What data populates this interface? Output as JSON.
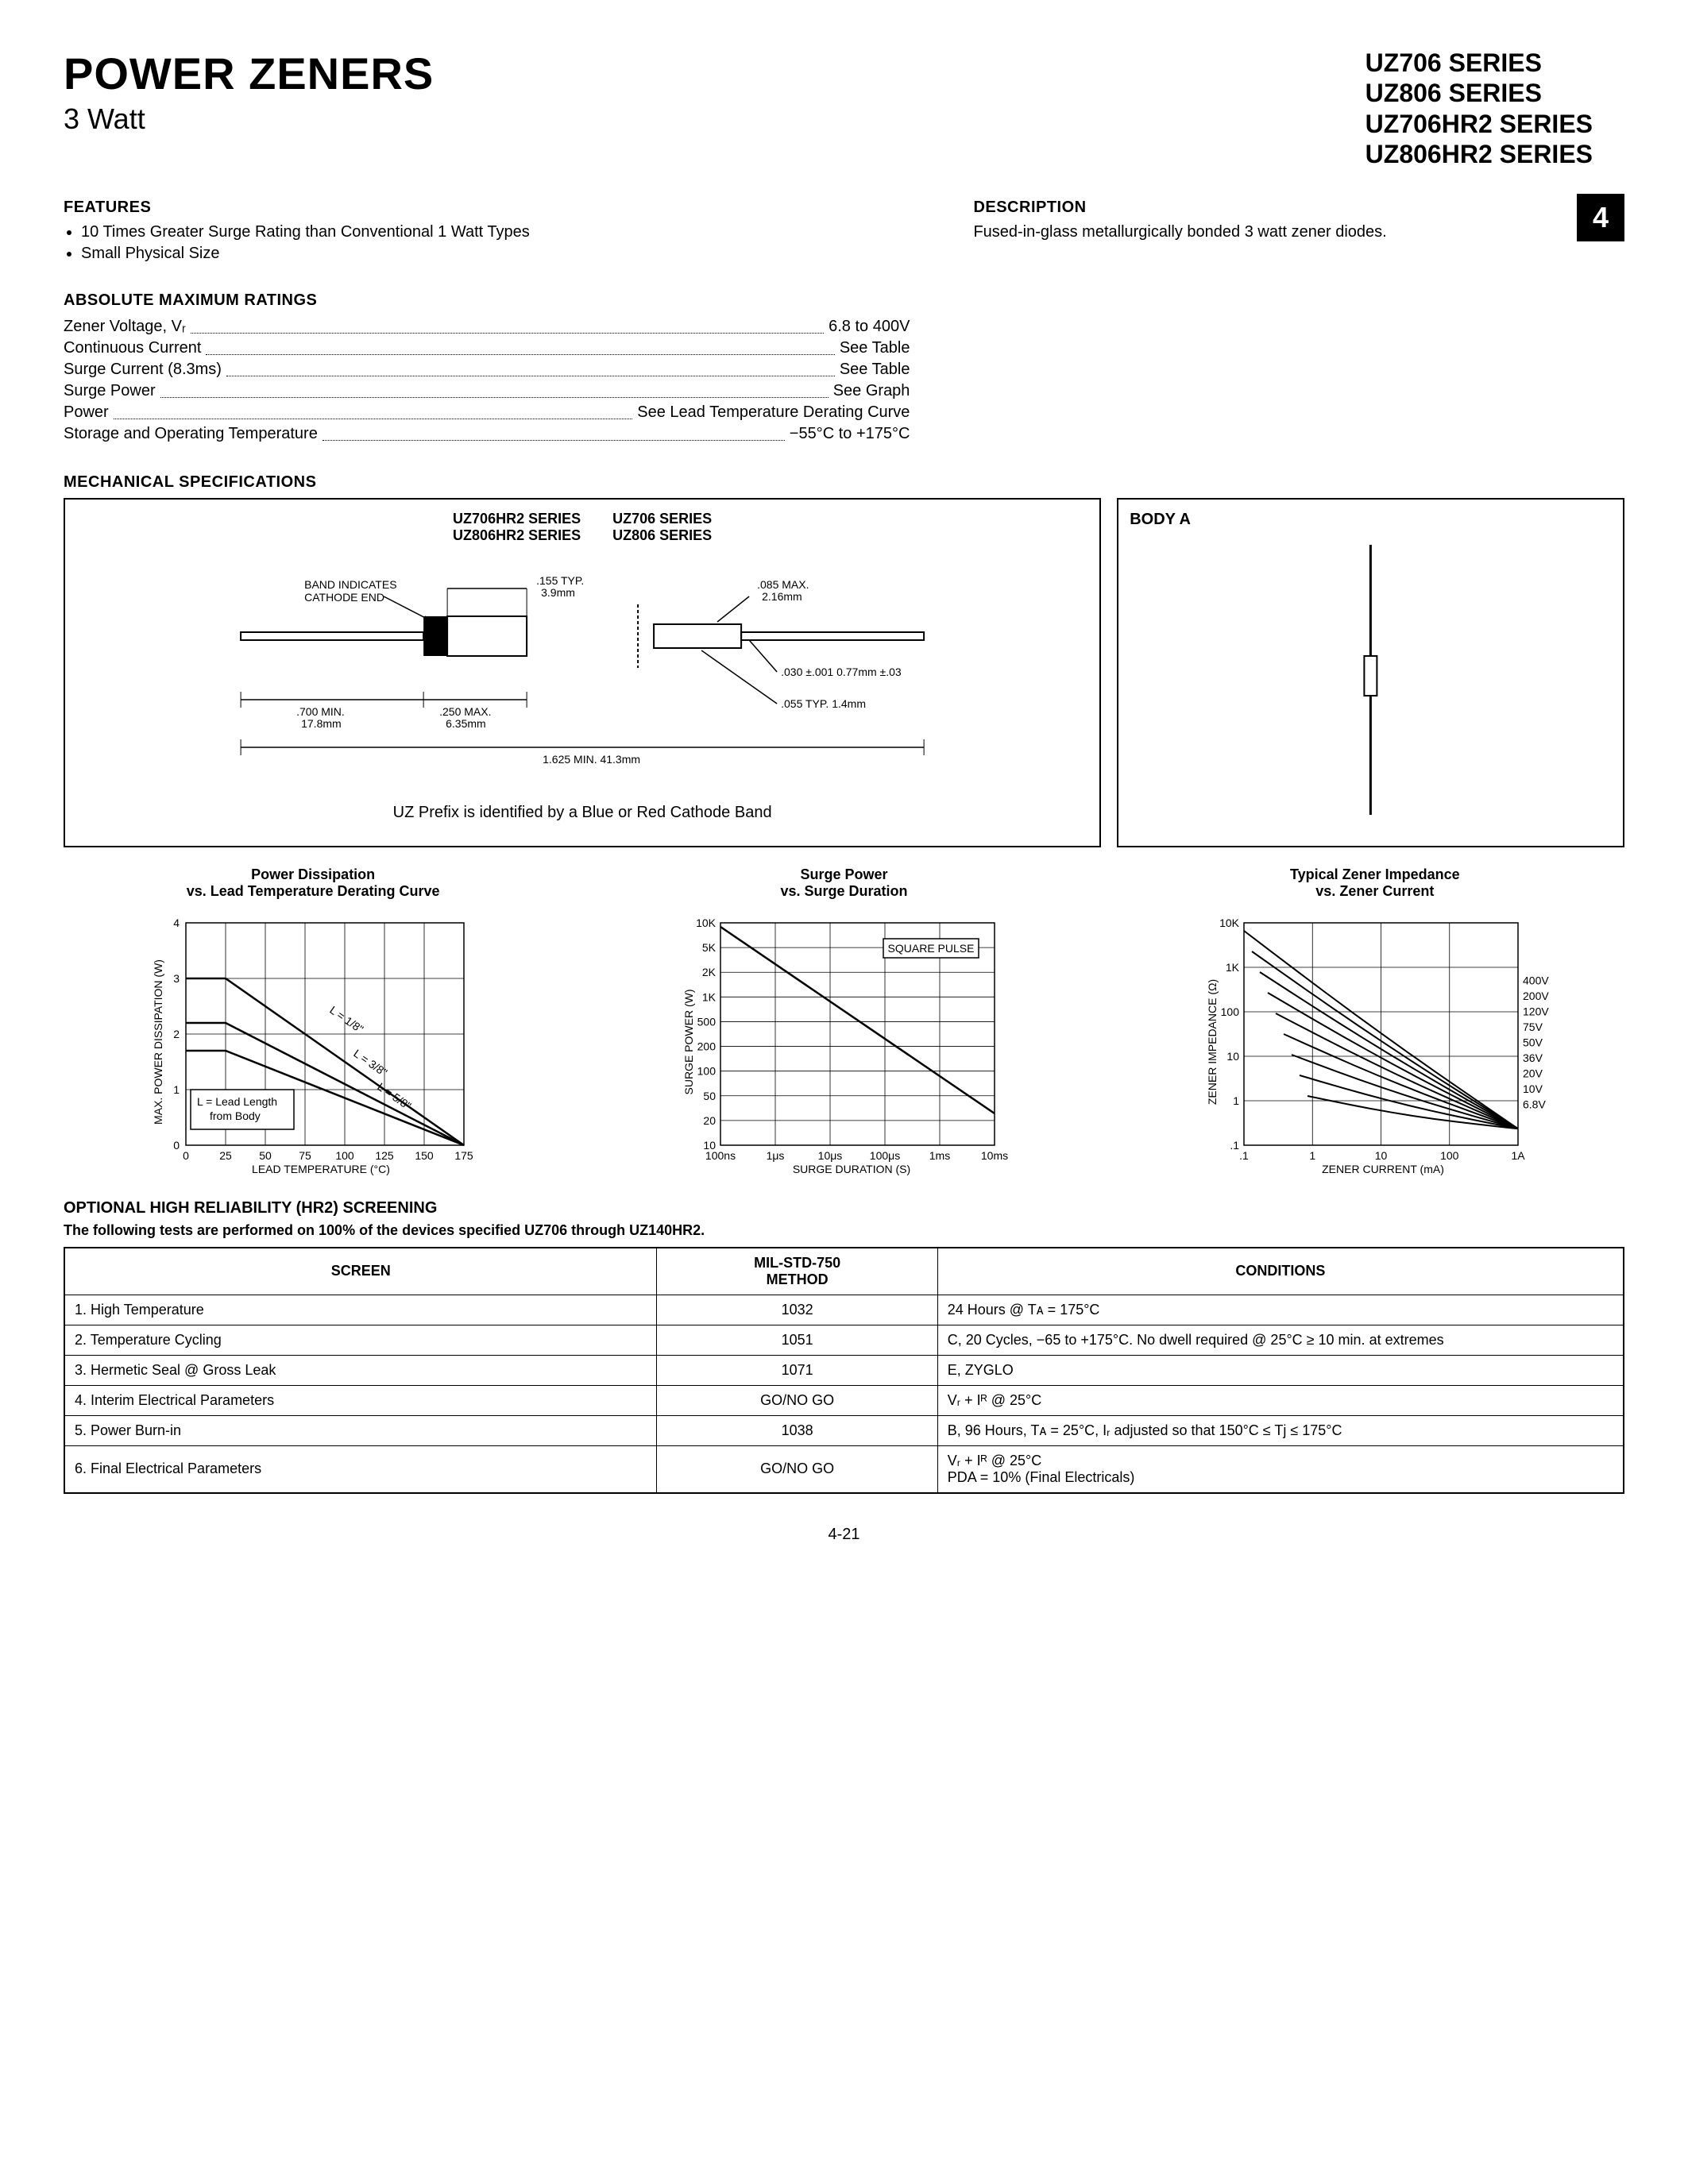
{
  "header": {
    "title": "POWER ZENERS",
    "subtitle": "3 Watt",
    "series": [
      "UZ706 SERIES",
      "UZ806 SERIES",
      "UZ706HR2 SERIES",
      "UZ806HR2 SERIES"
    ],
    "page_badge": "4"
  },
  "features": {
    "heading": "FEATURES",
    "items": [
      "10 Times Greater Surge Rating than Conventional 1 Watt Types",
      "Small Physical Size"
    ]
  },
  "description": {
    "heading": "DESCRIPTION",
    "text": "Fused-in-glass metallurgically bonded 3 watt zener diodes."
  },
  "ratings": {
    "heading": "ABSOLUTE MAXIMUM RATINGS",
    "rows": [
      {
        "label": "Zener Voltage, Vᵣ",
        "value": "6.8 to 400V"
      },
      {
        "label": "Continuous Current",
        "value": "See Table"
      },
      {
        "label": "Surge Current (8.3ms)",
        "value": "See Table"
      },
      {
        "label": "Surge Power",
        "value": "See Graph"
      },
      {
        "label": "Power",
        "value": "See Lead Temperature Derating Curve"
      },
      {
        "label": "Storage and Operating Temperature",
        "value": "−55°C to +175°C"
      }
    ]
  },
  "mechanical": {
    "heading": "MECHANICAL SPECIFICATIONS",
    "series_left": "UZ706HR2 SERIES\nUZ806HR2 SERIES",
    "series_right": "UZ706 SERIES\nUZ806 SERIES",
    "band_label": "BAND INDICATES\nCATHODE END",
    "dims": {
      "d155": ".155 TYP.\n3.9mm",
      "d085": ".085 MAX.\n2.16mm",
      "d030": ".030 ±.001\n0.77mm ±.03",
      "d055": ".055 TYP.\n1.4mm",
      "d700": ".700 MIN.\n17.8mm",
      "d250": ".250 MAX.\n6.35mm",
      "d1625": "1.625 MIN.\n41.3mm"
    },
    "note": "UZ Prefix is identified by a Blue or Red Cathode Band",
    "body_a_title": "BODY A"
  },
  "charts": {
    "chart1": {
      "title": "Power Dissipation\nvs. Lead Temperature Derating Curve",
      "xlabel": "LEAD TEMPERATURE (°C)",
      "ylabel": "MAX. POWER DISSIPATION (W)",
      "xlim": [
        0,
        175
      ],
      "xtick_step": 25,
      "ylim": [
        0,
        4
      ],
      "ytick_step": 1,
      "note_box": "L = Lead Length\nfrom Body",
      "series": [
        {
          "label": "L = 1/8\"",
          "points": [
            [
              0,
              3.0
            ],
            [
              25,
              3.0
            ],
            [
              175,
              0
            ]
          ]
        },
        {
          "label": "L = 3/8\"",
          "points": [
            [
              0,
              2.2
            ],
            [
              25,
              2.2
            ],
            [
              175,
              0
            ]
          ]
        },
        {
          "label": "L = 5/8\"",
          "points": [
            [
              0,
              1.7
            ],
            [
              25,
              1.7
            ],
            [
              175,
              0
            ]
          ]
        }
      ],
      "grid_color": "#000000"
    },
    "chart2": {
      "title": "Surge Power\nvs. Surge Duration",
      "xlabel": "SURGE DURATION (S)",
      "ylabel": "SURGE POWER (W)",
      "xticks": [
        "100ns",
        "1μs",
        "10μs",
        "100μs",
        "1ms",
        "10ms"
      ],
      "yticks": [
        "10",
        "20",
        "50",
        "100",
        "200",
        "500",
        "1K",
        "2K",
        "5K",
        "10K"
      ],
      "series_label": "SQUARE PULSE",
      "line": {
        "start": [
          0,
          4.0
        ],
        "end": [
          5.0,
          0.6
        ]
      },
      "grid_color": "#000000"
    },
    "chart3": {
      "title": "Typical Zener Impedance\nvs. Zener Current",
      "xlabel": "ZENER CURRENT (mA)",
      "ylabel": "ZENER IMPEDANCE (Ω)",
      "xticks": [
        ".1",
        "1",
        "10",
        "100",
        "1A"
      ],
      "yticks": [
        ".1",
        "1",
        "10",
        "100",
        "1K",
        "10K"
      ],
      "curve_labels": [
        "400V",
        "200V",
        "120V",
        "75V",
        "50V",
        "36V",
        "20V",
        "10V",
        "6.8V"
      ],
      "grid_color": "#000000"
    }
  },
  "screening": {
    "heading": "OPTIONAL HIGH RELIABILITY (HR2) SCREENING",
    "sub": "The following tests are performed on 100% of the devices specified UZ706 through UZ140HR2.",
    "headers": [
      "SCREEN",
      "MIL-STD-750\nMETHOD",
      "CONDITIONS"
    ],
    "rows": [
      [
        "1.  High Temperature",
        "1032",
        "24 Hours @ Tᴀ = 175°C"
      ],
      [
        "2.  Temperature Cycling",
        "1051",
        "C, 20 Cycles, −65 to +175°C. No dwell required @ 25°C ≥ 10 min. at extremes"
      ],
      [
        "3.  Hermetic Seal @ Gross Leak",
        "1071",
        "E, ZYGLO"
      ],
      [
        "4.  Interim Electrical Parameters",
        "GO/NO GO",
        "Vᵣ + Iᴿ @ 25°C"
      ],
      [
        "5.  Power Burn-in",
        "1038",
        "B, 96 Hours, Tᴀ = 25°C, Iᵣ adjusted so that 150°C ≤ Tj ≤ 175°C"
      ],
      [
        "6.  Final Electrical Parameters",
        "GO/NO GO",
        "Vᵣ + Iᴿ @ 25°C\nPDA = 10% (Final Electricals)"
      ]
    ]
  },
  "page_num": "4-21",
  "colors": {
    "text": "#000000",
    "bg": "#ffffff"
  }
}
